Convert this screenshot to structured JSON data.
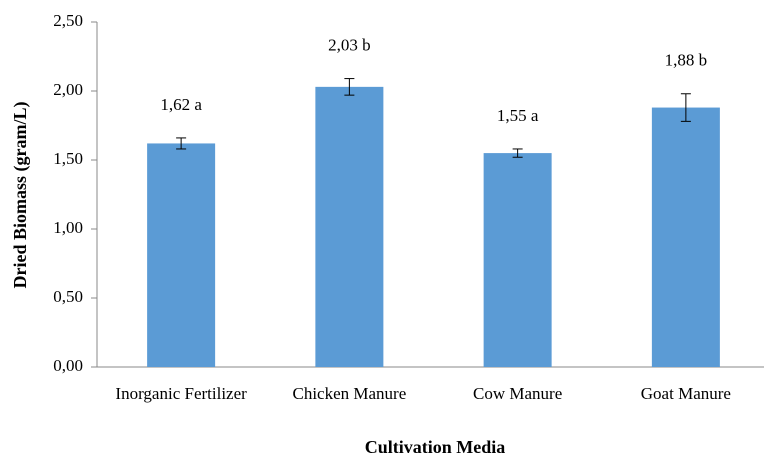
{
  "chart_data": {
    "type": "bar",
    "x_label": "Cultivation Media",
    "y_label": "Dried Biomass (gram/L)",
    "categories": [
      "Inorganic Fertilizer",
      "Chicken Manure",
      "Cow Manure",
      "Goat Manure"
    ],
    "values": [
      1.62,
      2.03,
      1.55,
      1.88
    ],
    "value_labels": [
      "1,62 a",
      "2,03 b",
      "1,55 a",
      "1,88 b"
    ],
    "errors": [
      0.04,
      0.06,
      0.03,
      0.1
    ],
    "color": "#5b9bd5",
    "ylim": [
      0,
      2.5
    ],
    "yticks": [
      {
        "value": 0,
        "label": "0,00"
      },
      {
        "value": 0.5,
        "label": "0,50"
      },
      {
        "value": 1,
        "label": "1,00"
      },
      {
        "value": 1.5,
        "label": "1,50"
      },
      {
        "value": 2,
        "label": "2,00"
      },
      {
        "value": 2.5,
        "label": "2,50"
      }
    ],
    "grid": false
  }
}
